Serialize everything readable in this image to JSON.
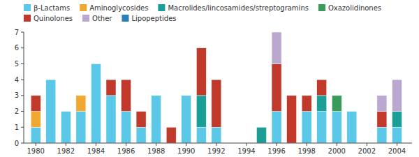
{
  "chart_data": {
    "type": "bar",
    "stacked": true,
    "x": [
      1980,
      1981,
      1982,
      1983,
      1984,
      1985,
      1986,
      1987,
      1988,
      1989,
      1990,
      1991,
      1992,
      1993,
      1994,
      1995,
      1996,
      1997,
      1998,
      1999,
      2000,
      2001,
      2002,
      2003,
      2004
    ],
    "series": [
      {
        "name": "β-Lactams",
        "color": "#5BC8E8",
        "values": [
          1,
          4,
          2,
          2,
          5,
          3,
          2,
          1,
          3,
          0,
          3,
          1,
          1,
          0,
          0,
          0,
          2,
          0,
          2,
          2,
          2,
          2,
          0,
          1,
          1
        ]
      },
      {
        "name": "Aminoglycosides",
        "color": "#F0A830",
        "values": [
          1,
          0,
          0,
          1,
          0,
          0,
          0,
          0,
          0,
          0,
          0,
          0,
          0,
          0,
          0,
          0,
          0,
          0,
          0,
          0,
          0,
          0,
          0,
          0,
          0
        ]
      },
      {
        "name": "Macrolides/lincosamides/streptogramins",
        "color": "#1A9E96",
        "values": [
          0,
          0,
          0,
          0,
          0,
          0,
          0,
          0,
          0,
          0,
          0,
          2,
          0,
          0,
          0,
          1,
          0,
          0,
          0,
          1,
          0,
          0,
          0,
          0,
          1
        ]
      },
      {
        "name": "Oxazolidinones",
        "color": "#3A9A5C",
        "values": [
          0,
          0,
          0,
          0,
          0,
          0,
          0,
          0,
          0,
          0,
          0,
          0,
          0,
          0,
          0,
          0,
          0,
          0,
          0,
          0,
          1,
          0,
          0,
          0,
          0
        ]
      },
      {
        "name": "Quinolones",
        "color": "#C0392B",
        "values": [
          1,
          0,
          0,
          0,
          0,
          1,
          2,
          1,
          0,
          1,
          0,
          3,
          3,
          0,
          0,
          0,
          3,
          3,
          1,
          1,
          0,
          0,
          0,
          1,
          0
        ]
      },
      {
        "name": "Other",
        "color": "#BBA8D0",
        "values": [
          0,
          0,
          0,
          0,
          0,
          0,
          0,
          0,
          0,
          0,
          0,
          0,
          0,
          0,
          0,
          0,
          2,
          0,
          0,
          0,
          0,
          0,
          0,
          1,
          2
        ]
      },
      {
        "name": "Lipopeptides",
        "color": "#2980B9",
        "values": [
          0,
          0,
          0,
          0,
          0,
          0,
          0,
          0,
          0,
          0,
          0,
          0,
          0,
          0,
          0,
          0,
          0,
          0,
          0,
          0,
          0,
          0,
          0,
          0,
          0
        ]
      }
    ],
    "xlim": [
      1979.2,
      2005.0
    ],
    "xticks": [
      1980,
      1982,
      1984,
      1986,
      1988,
      1990,
      1992,
      1994,
      1996,
      1998,
      2000,
      2002,
      2004
    ],
    "ylim": [
      0,
      7
    ],
    "yticks": [
      0,
      1,
      2,
      3,
      4,
      5,
      6,
      7
    ],
    "grid": false,
    "legend": "upper left"
  }
}
